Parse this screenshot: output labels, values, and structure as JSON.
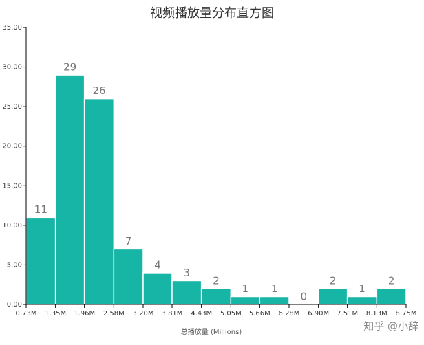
{
  "chart_data": {
    "type": "histogram",
    "title": "视频播放量分布直方图",
    "xlabel": "总播放量 (Millions)",
    "watermark": "知乎 @小辞",
    "bins": [
      0.73,
      1.35,
      1.96,
      2.58,
      3.2,
      3.81,
      4.43,
      5.05,
      5.66,
      6.28,
      6.9,
      7.51,
      8.13,
      8.75
    ],
    "values": [
      11,
      29,
      26,
      7,
      4,
      3,
      2,
      1,
      1,
      0,
      2,
      1,
      2
    ],
    "color": "#17b5a6",
    "xlim": [
      0.73,
      8.75
    ],
    "xticks": [
      {
        "value": 0.73,
        "label": "0.73M"
      },
      {
        "value": 1.35,
        "label": "1.35M"
      },
      {
        "value": 1.96,
        "label": "1.96M"
      },
      {
        "value": 2.58,
        "label": "2.58M"
      },
      {
        "value": 3.2,
        "label": "3.20M"
      },
      {
        "value": 3.81,
        "label": "3.81M"
      },
      {
        "value": 4.43,
        "label": "4.43M"
      },
      {
        "value": 5.05,
        "label": "5.05M"
      },
      {
        "value": 5.66,
        "label": "5.66M"
      },
      {
        "value": 6.28,
        "label": "6.28M"
      },
      {
        "value": 6.9,
        "label": "6.90M"
      },
      {
        "value": 7.51,
        "label": "7.51M"
      },
      {
        "value": 8.13,
        "label": "8.13M"
      },
      {
        "value": 8.75,
        "label": "8.75M"
      }
    ],
    "ylim": [
      0,
      35
    ],
    "yticks": [
      {
        "value": 0,
        "label": "0.00"
      },
      {
        "value": 5,
        "label": "5.00"
      },
      {
        "value": 10,
        "label": "10.00"
      },
      {
        "value": 15,
        "label": "15.00"
      },
      {
        "value": 20,
        "label": "20.00"
      },
      {
        "value": 25,
        "label": "25.00"
      },
      {
        "value": 30,
        "label": "30.00"
      },
      {
        "value": 35,
        "label": "35.00"
      }
    ]
  }
}
